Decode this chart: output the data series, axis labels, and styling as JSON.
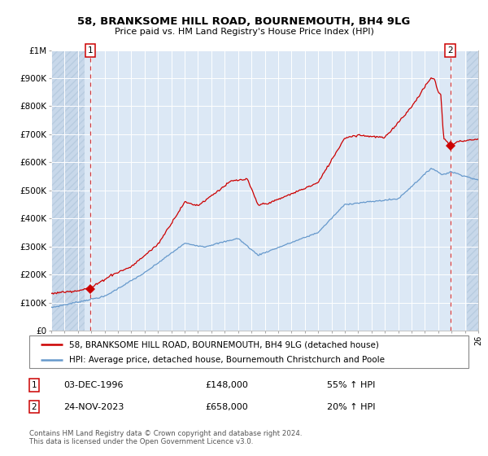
{
  "title1": "58, BRANKSOME HILL ROAD, BOURNEMOUTH, BH4 9LG",
  "title2": "Price paid vs. HM Land Registry's House Price Index (HPI)",
  "bg_color": "#ffffff",
  "plot_bg_color": "#dce8f5",
  "hatch_fg_color": "#b8cce0",
  "hatch_bg_color": "#c8d8ea",
  "grid_color": "#ffffff",
  "red_line_color": "#cc0000",
  "blue_line_color": "#6699cc",
  "marker_color": "#cc0000",
  "vline_color": "#cc0000",
  "point1_x": 1996.92,
  "point1_value": 148000,
  "point1_date_str": "03-DEC-1996",
  "point1_price_str": "£148,000",
  "point1_hpi_str": "55% ↑ HPI",
  "point2_x": 2023.9,
  "point2_value": 658000,
  "point2_date_str": "24-NOV-2023",
  "point2_price_str": "£658,000",
  "point2_hpi_str": "20% ↑ HPI",
  "legend_line1": "58, BRANKSOME HILL ROAD, BOURNEMOUTH, BH4 9LG (detached house)",
  "legend_line2": "HPI: Average price, detached house, Bournemouth Christchurch and Poole",
  "footer": "Contains HM Land Registry data © Crown copyright and database right 2024.\nThis data is licensed under the Open Government Licence v3.0.",
  "xmin": 1994.0,
  "xmax": 2026.0,
  "ymin": 0,
  "ymax": 1000000,
  "hatch_left_end": 1996.5,
  "hatch_right_start": 2025.17,
  "ytick_vals": [
    0,
    100000,
    200000,
    300000,
    400000,
    500000,
    600000,
    700000,
    800000,
    900000,
    1000000
  ],
  "ytick_labels": [
    "£0",
    "£100K",
    "£200K",
    "£300K",
    "£400K",
    "£500K",
    "£600K",
    "£700K",
    "£800K",
    "£900K",
    "£1M"
  ]
}
